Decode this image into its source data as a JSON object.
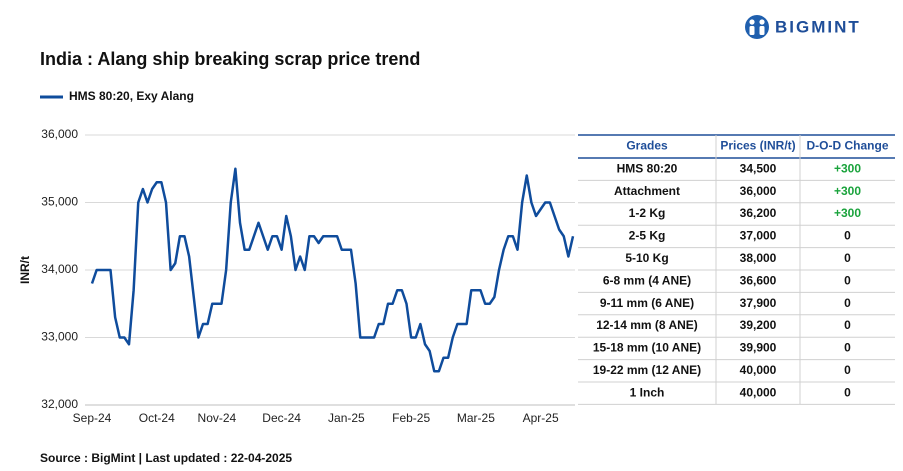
{
  "brand": "BIGMINT",
  "chart_data": {
    "type": "line",
    "title": "India : Alang ship breaking scrap price trend",
    "y_label": "INR/t",
    "source": "Source : BigMint | Last updated : 22-04-2025",
    "categories": [
      "Sep-24",
      null,
      null,
      null,
      null,
      null,
      null,
      null,
      null,
      null,
      null,
      null,
      null,
      null,
      "Oct-24",
      null,
      null,
      null,
      null,
      null,
      null,
      null,
      null,
      null,
      null,
      null,
      null,
      "Nov-24",
      null,
      null,
      null,
      null,
      null,
      null,
      null,
      null,
      null,
      null,
      null,
      null,
      null,
      "Dec-24",
      null,
      null,
      null,
      null,
      null,
      null,
      null,
      null,
      null,
      null,
      null,
      null,
      null,
      "Jan-25",
      null,
      null,
      null,
      null,
      null,
      null,
      null,
      null,
      null,
      null,
      null,
      null,
      null,
      "Feb-25",
      null,
      null,
      null,
      null,
      null,
      null,
      null,
      null,
      null,
      null,
      null,
      null,
      null,
      "Mar-25",
      null,
      null,
      null,
      null,
      null,
      null,
      null,
      null,
      null,
      null,
      null,
      null,
      null,
      "Apr-25",
      null,
      null,
      null,
      null,
      null,
      null,
      null
    ],
    "series": [
      {
        "name": "HMS 80:20, Exy Alang",
        "color": "#0f4c9c",
        "values": [
          33800,
          34000,
          34000,
          34000,
          34000,
          33300,
          33000,
          33000,
          32900,
          33700,
          35000,
          35200,
          35000,
          35200,
          35300,
          35300,
          35000,
          34000,
          34100,
          34500,
          34500,
          34200,
          33600,
          33000,
          33200,
          33200,
          33500,
          33500,
          33500,
          34000,
          35000,
          35500,
          34700,
          34300,
          34300,
          34500,
          34700,
          34500,
          34300,
          34500,
          34500,
          34300,
          34800,
          34500,
          34000,
          34200,
          34000,
          34500,
          34500,
          34400,
          34500,
          34500,
          34500,
          34500,
          34300,
          34300,
          34300,
          33800,
          33000,
          33000,
          33000,
          33000,
          33200,
          33200,
          33500,
          33500,
          33700,
          33700,
          33500,
          33000,
          33000,
          33200,
          32900,
          32800,
          32500,
          32500,
          32700,
          32700,
          33000,
          33200,
          33200,
          33200,
          33700,
          33700,
          33700,
          33500,
          33500,
          33600,
          34000,
          34300,
          34500,
          34500,
          34300,
          35000,
          35400,
          35000,
          34800,
          34900,
          35000,
          35000,
          34800,
          34600,
          34500,
          34200,
          34500
        ]
      }
    ],
    "ylim": [
      32000,
      36000
    ],
    "yticks": [
      {
        "value": 32000,
        "label": "32,000"
      },
      {
        "value": 33000,
        "label": "33,000"
      },
      {
        "value": 34000,
        "label": "34,000"
      },
      {
        "value": 35000,
        "label": "35,000"
      },
      {
        "value": 36000,
        "label": "36,000"
      }
    ],
    "grid": true
  },
  "table": {
    "columns": [
      "Grades",
      "Prices (INR/t)",
      "D-O-D Change"
    ],
    "rows": [
      [
        "HMS 80:20",
        "34,500",
        "+300"
      ],
      [
        "Attachment",
        "36,000",
        "+300"
      ],
      [
        "1-2 Kg",
        "36,200",
        "+300"
      ],
      [
        "2-5 Kg",
        "37,000",
        "0"
      ],
      [
        "5-10 Kg",
        "38,000",
        "0"
      ],
      [
        "6-8 mm (4 ANE)",
        "36,600",
        "0"
      ],
      [
        "9-11 mm (6 ANE)",
        "37,900",
        "0"
      ],
      [
        "12-14 mm (8 ANE)",
        "39,200",
        "0"
      ],
      [
        "15-18 mm (10 ANE)",
        "39,900",
        "0"
      ],
      [
        "19-22 mm (12 ANE)",
        "40,000",
        "0"
      ],
      [
        "1 Inch",
        "40,000",
        "0"
      ]
    ]
  }
}
